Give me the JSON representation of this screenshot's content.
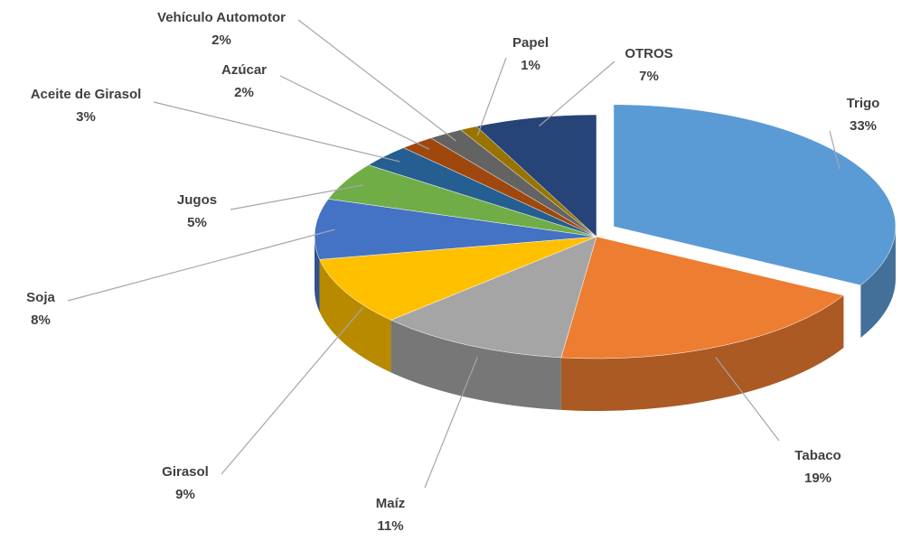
{
  "chart_data": {
    "type": "pie",
    "categories": [
      "Trigo",
      "Tabaco",
      "Maíz",
      "Girasol",
      "Soja",
      "Jugos",
      "Aceite de Girasol",
      "Azúcar",
      "Vehículo Automotor",
      "Papel",
      "OTROS"
    ],
    "values": [
      33,
      19,
      11,
      9,
      8,
      5,
      3,
      2,
      2,
      1,
      7
    ],
    "value_labels": [
      "33%",
      "19%",
      "11%",
      "9%",
      "8%",
      "5%",
      "3%",
      "2%",
      "2%",
      "1%",
      "7%"
    ],
    "colors": [
      "#5b9bd5",
      "#ed7d31",
      "#a5a5a5",
      "#ffc000",
      "#4472c4",
      "#70ad47",
      "#255e91",
      "#9e480e",
      "#636363",
      "#997300",
      "#264478"
    ]
  }
}
